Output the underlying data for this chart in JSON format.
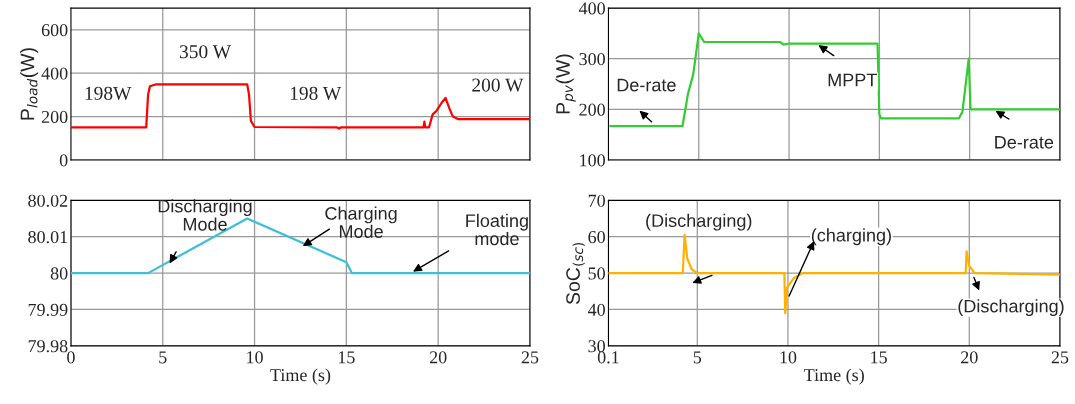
{
  "chart_data": [
    {
      "type": "line",
      "ylabel": "P$_{load}$(W)",
      "xlim": [
        0,
        25
      ],
      "xticks": [
        5,
        10,
        15,
        20,
        25
      ],
      "ylim": [
        0,
        700
      ],
      "yticks": [
        0,
        200,
        400,
        600
      ],
      "grid": true,
      "tick_labels": "y",
      "series": [
        {
          "color": "#ff0000",
          "x": [
            0,
            4.1,
            4.2,
            4.3,
            4.6,
            9.6,
            9.7,
            9.8,
            10.0,
            14.5,
            14.6,
            14.7,
            19.2,
            19.25,
            19.3,
            19.5,
            19.7,
            19.9,
            20.2,
            20.4,
            20.6,
            20.8,
            21.1,
            25
          ],
          "values": [
            150,
            150,
            300,
            340,
            348,
            348,
            300,
            180,
            152,
            150,
            145,
            150,
            150,
            177,
            150,
            150,
            210,
            225,
            265,
            286,
            240,
            200,
            188,
            188
          ]
        }
      ],
      "annotations": [
        {
          "text": "198W",
          "x": 2,
          "y": 150
        },
        {
          "text": "350 W",
          "x": 7,
          "y": 348
        },
        {
          "text": "198 W",
          "x": 13,
          "y": 150
        },
        {
          "text": "200 W",
          "x": 23,
          "y": 188
        }
      ]
    },
    {
      "type": "line",
      "ylabel": "P$_{pv}$(W)",
      "xlim": [
        0,
        25
      ],
      "xticks": [
        5,
        10,
        15,
        20,
        25
      ],
      "ylim": [
        100,
        400
      ],
      "yticks": [
        100,
        200,
        300,
        400
      ],
      "grid": true,
      "tick_labels": "y",
      "series": [
        {
          "color": "#33cc33",
          "x": [
            0.1,
            4.1,
            4.4,
            4.7,
            5.0,
            5.3,
            9.5,
            9.7,
            10,
            14.9,
            15.0,
            15.1,
            19.4,
            19.6,
            19.95,
            20.05,
            25
          ],
          "values": [
            167,
            167,
            230,
            270,
            350,
            333,
            333,
            328,
            330,
            330,
            190,
            182,
            182,
            195,
            300,
            200,
            200
          ]
        }
      ],
      "annotations": [
        {
          "text": "De-rate",
          "x": 2.5,
          "y": 172
        },
        {
          "text": "MPPT",
          "x": 11.5,
          "y": 330
        },
        {
          "text": "De-rate",
          "x": 21.3,
          "y": 200
        }
      ]
    },
    {
      "type": "line",
      "xlabel": "Time (s)",
      "xlim": [
        0,
        25
      ],
      "xticks": [
        0,
        5,
        10,
        15,
        20,
        25
      ],
      "ylim": [
        79.98,
        80.02
      ],
      "yticks": [
        79.98,
        79.99,
        80,
        80.01,
        80.02
      ],
      "grid": true,
      "series": [
        {
          "color": "#3cc0d8",
          "x": [
            0,
            4.2,
            9.6,
            15.0,
            15.2,
            15.3,
            25
          ],
          "values": [
            80.0,
            80.0,
            80.015,
            80.003,
            80.001,
            80.0,
            80.0
          ]
        }
      ],
      "annotations": [
        {
          "text": "Discharging\nMode",
          "x": 5.3,
          "y": 80.002
        },
        {
          "text": "Charging\nMode",
          "x": 12.5,
          "y": 80.007
        },
        {
          "text": "Floating\nmode",
          "x": 18.5,
          "y": 80.0
        }
      ]
    },
    {
      "type": "line",
      "ylabel": "SoC$_{(sc)}$",
      "xlabel": "Time (s)",
      "xlim": [
        0.1,
        25
      ],
      "xticks": [
        0.1,
        5,
        10,
        15,
        20,
        25
      ],
      "ylim": [
        30,
        70
      ],
      "yticks": [
        30,
        40,
        50,
        60,
        70
      ],
      "grid": true,
      "series": [
        {
          "color": "#ffb000",
          "x": [
            0.1,
            4.2,
            4.3,
            4.45,
            4.7,
            5,
            9.8,
            9.85,
            9.95,
            10.3,
            10.8,
            19.8,
            19.85,
            20.0,
            20.3,
            25
          ],
          "values": [
            50,
            50,
            60.5,
            54,
            51,
            50,
            50,
            39,
            46,
            48.5,
            50,
            50,
            56,
            52,
            50,
            49.6
          ]
        }
      ],
      "annotations": [
        "(Discharging)",
        {
          "text": "(charging)",
          "x": 10,
          "y": 43
        },
        {
          "text": "(Discharging)",
          "x": 20.2,
          "y": 49.5
        }
      ]
    }
  ]
}
